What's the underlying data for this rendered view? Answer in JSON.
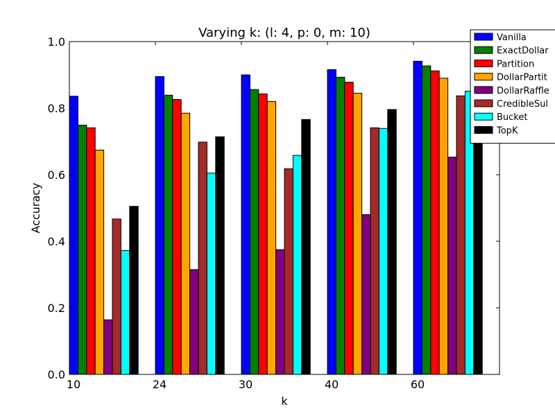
{
  "chart_data": {
    "type": "bar",
    "title": "Varying k: (l: 4, p: 0, m: 10)",
    "xlabel": "k",
    "ylabel": "Accuracy",
    "ylim": [
      0.0,
      1.0
    ],
    "yticks": [
      "0.0",
      "0.2",
      "0.4",
      "0.6",
      "0.8",
      "1.0"
    ],
    "categories": [
      "10",
      "24",
      "30",
      "40",
      "60"
    ],
    "grid": false,
    "legend_position": "top-right",
    "series": [
      {
        "name": "Vanilla",
        "color": "#0000ff",
        "values": [
          0.836,
          0.895,
          0.9,
          0.916,
          0.941
        ]
      },
      {
        "name": "ExactDollar",
        "color": "#008000",
        "values": [
          0.749,
          0.839,
          0.856,
          0.893,
          0.927
        ]
      },
      {
        "name": "Partition",
        "color": "#ff0000",
        "values": [
          0.741,
          0.826,
          0.843,
          0.878,
          0.912
        ]
      },
      {
        "name": "DollarPartit",
        "color": "#ffa500",
        "values": [
          0.674,
          0.785,
          0.82,
          0.845,
          0.89
        ]
      },
      {
        "name": "DollarRaffle",
        "color": "#800080",
        "values": [
          0.164,
          0.315,
          0.375,
          0.48,
          0.653
        ]
      },
      {
        "name": "CredibleSul",
        "color": "#a52a2a",
        "values": [
          0.467,
          0.698,
          0.618,
          0.741,
          0.837
        ]
      },
      {
        "name": "Bucket",
        "color": "#00ffff",
        "values": [
          0.372,
          0.605,
          0.658,
          0.739,
          0.851
        ]
      },
      {
        "name": "TopK",
        "color": "#000000",
        "values": [
          0.505,
          0.714,
          0.766,
          0.796,
          0.862
        ]
      }
    ]
  }
}
